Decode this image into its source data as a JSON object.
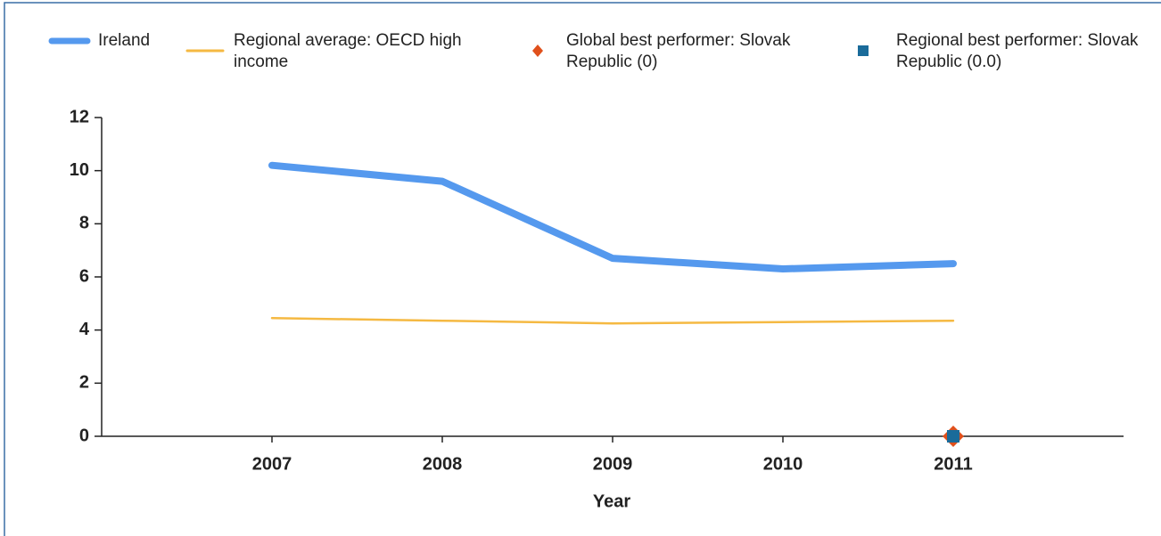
{
  "chart_data": {
    "type": "line",
    "x_label": "Year",
    "x": [
      2007,
      2008,
      2009,
      2010,
      2011
    ],
    "xlim": [
      2006,
      2012
    ],
    "xticks": [
      2007,
      2008,
      2009,
      2010,
      2011
    ],
    "ylim": [
      0,
      12
    ],
    "yticks": [
      0,
      2,
      4,
      6,
      8,
      10,
      12
    ],
    "grid": false,
    "legend": "top",
    "series": [
      {
        "name": "Ireland",
        "color": "#5599ee",
        "marker": "line",
        "x": [
          2007,
          2008,
          2009,
          2010,
          2011
        ],
        "values": [
          10.2,
          9.6,
          6.7,
          6.3,
          6.5
        ]
      },
      {
        "name": "Regional average: OECD high income",
        "color": "#f5b942",
        "marker": "line",
        "x": [
          2007,
          2008,
          2009,
          2010,
          2011
        ],
        "values": [
          4.45,
          4.35,
          4.25,
          4.3,
          4.35
        ]
      },
      {
        "name": "Global best performer: Slovak Republic (0)",
        "color": "#e0501c",
        "marker": "diamond",
        "x": [
          2011
        ],
        "values": [
          0
        ]
      },
      {
        "name": "Regional best performer: Slovak Republic (0.0)",
        "color": "#1a6b9a",
        "marker": "square",
        "x": [
          2011
        ],
        "values": [
          0
        ]
      }
    ]
  }
}
